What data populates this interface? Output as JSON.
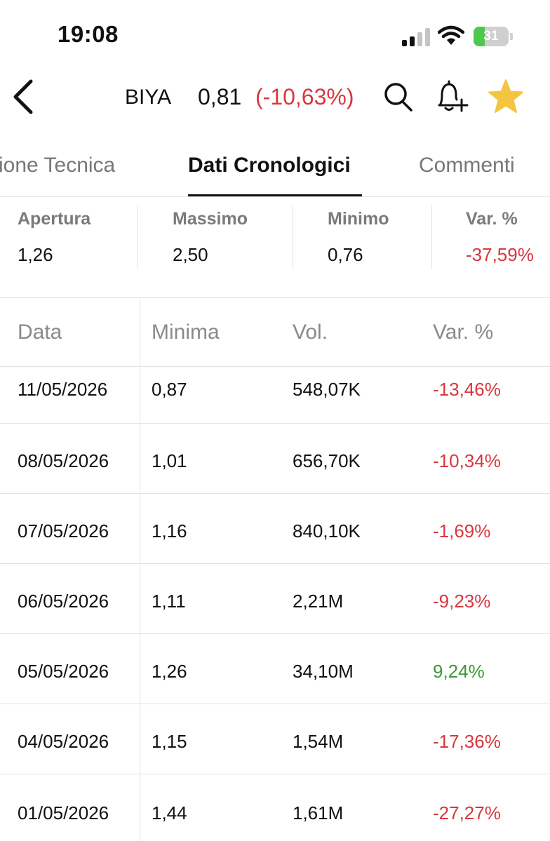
{
  "status_bar": {
    "time": "19:08",
    "battery": "31",
    "battery_fraction": 0.31
  },
  "header": {
    "ticker": "BIYA",
    "price": "0,81",
    "change": "(-10,63%)",
    "icons": [
      "back-icon",
      "search-icon",
      "bell-plus-icon",
      "star-icon"
    ],
    "favorite_color": "#f5c542"
  },
  "tabs": [
    {
      "label": "ione Tecnica",
      "active": false
    },
    {
      "label": "Dati Cronologici",
      "active": true
    },
    {
      "label": "Commenti",
      "active": false
    }
  ],
  "summary": [
    {
      "label": "Apertura",
      "value": "1,26",
      "tone": "neutral"
    },
    {
      "label": "Massimo",
      "value": "2,50",
      "tone": "neutral"
    },
    {
      "label": "Minimo",
      "value": "0,76",
      "tone": "neutral"
    },
    {
      "label": "Var. %",
      "value": "-37,59%",
      "tone": "negative"
    }
  ],
  "table": {
    "columns": [
      "Data",
      "Minima",
      "Vol.",
      "Var. %"
    ],
    "rows": [
      {
        "date": "11/05/2026",
        "low": "0,87",
        "volume": "548,07K",
        "change": "-13,46%",
        "tone": "negative"
      },
      {
        "date": "08/05/2026",
        "low": "1,01",
        "volume": "656,70K",
        "change": "-10,34%",
        "tone": "negative"
      },
      {
        "date": "07/05/2026",
        "low": "1,16",
        "volume": "840,10K",
        "change": "-1,69%",
        "tone": "negative"
      },
      {
        "date": "06/05/2026",
        "low": "1,11",
        "volume": "2,21M",
        "change": "-9,23%",
        "tone": "negative"
      },
      {
        "date": "05/05/2026",
        "low": "1,26",
        "volume": "34,10M",
        "change": "9,24%",
        "tone": "positive"
      },
      {
        "date": "04/05/2026",
        "low": "1,15",
        "volume": "1,54M",
        "change": "-17,36%",
        "tone": "negative"
      },
      {
        "date": "01/05/2026",
        "low": "1,44",
        "volume": "1,61M",
        "change": "-27,27%",
        "tone": "negative"
      }
    ]
  },
  "colors": {
    "negative": "#d9363e",
    "positive": "#3c9a34",
    "battery": "#4cc84e"
  }
}
